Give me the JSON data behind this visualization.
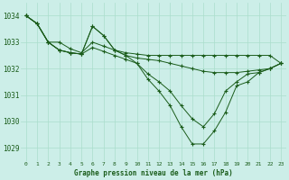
{
  "title": "Graphe pression niveau de la mer (hPa)",
  "background_color": "#cceee8",
  "grid_color": "#aaddcc",
  "line_color": "#1a5c1a",
  "xlim": [
    -0.5,
    23.5
  ],
  "ylim": [
    1028.5,
    1034.5
  ],
  "yticks": [
    1029,
    1030,
    1031,
    1032,
    1033,
    1034
  ],
  "xticks": [
    0,
    1,
    2,
    3,
    4,
    5,
    6,
    7,
    8,
    9,
    10,
    11,
    12,
    13,
    14,
    15,
    16,
    17,
    18,
    19,
    20,
    21,
    22,
    23
  ],
  "series": [
    [
      1034.0,
      1033.7,
      1033.0,
      1033.0,
      1032.75,
      1032.6,
      1033.0,
      1032.85,
      1032.7,
      1032.6,
      1032.55,
      1032.5,
      1032.5,
      1032.5,
      1032.5,
      1032.5,
      1032.5,
      1032.5,
      1032.5,
      1032.5,
      1032.5,
      1032.5,
      1032.5,
      1032.2
    ],
    [
      1034.0,
      1033.7,
      1033.0,
      1032.7,
      1032.6,
      1032.55,
      1033.6,
      1033.25,
      1032.7,
      1032.5,
      1032.4,
      1032.35,
      1032.3,
      1032.2,
      1032.1,
      1032.0,
      1031.9,
      1031.85,
      1031.85,
      1031.85,
      1031.9,
      1031.95,
      1032.0,
      1032.2
    ],
    [
      1034.0,
      1033.7,
      1033.0,
      1032.7,
      1032.6,
      1032.55,
      1032.8,
      1032.65,
      1032.5,
      1032.35,
      1032.2,
      1031.8,
      1031.5,
      1031.15,
      1030.6,
      1030.1,
      1029.8,
      1030.3,
      1031.15,
      1031.5,
      1031.8,
      1031.85,
      1032.0,
      1032.2
    ],
    [
      1034.0,
      1033.7,
      1033.0,
      1032.7,
      1032.6,
      1032.55,
      1033.6,
      1033.25,
      1032.7,
      1032.5,
      1032.2,
      1031.6,
      1031.15,
      1030.6,
      1029.8,
      1029.15,
      1029.15,
      1029.65,
      1030.35,
      1031.35,
      1031.5,
      1031.85,
      1032.0,
      1032.2
    ]
  ]
}
